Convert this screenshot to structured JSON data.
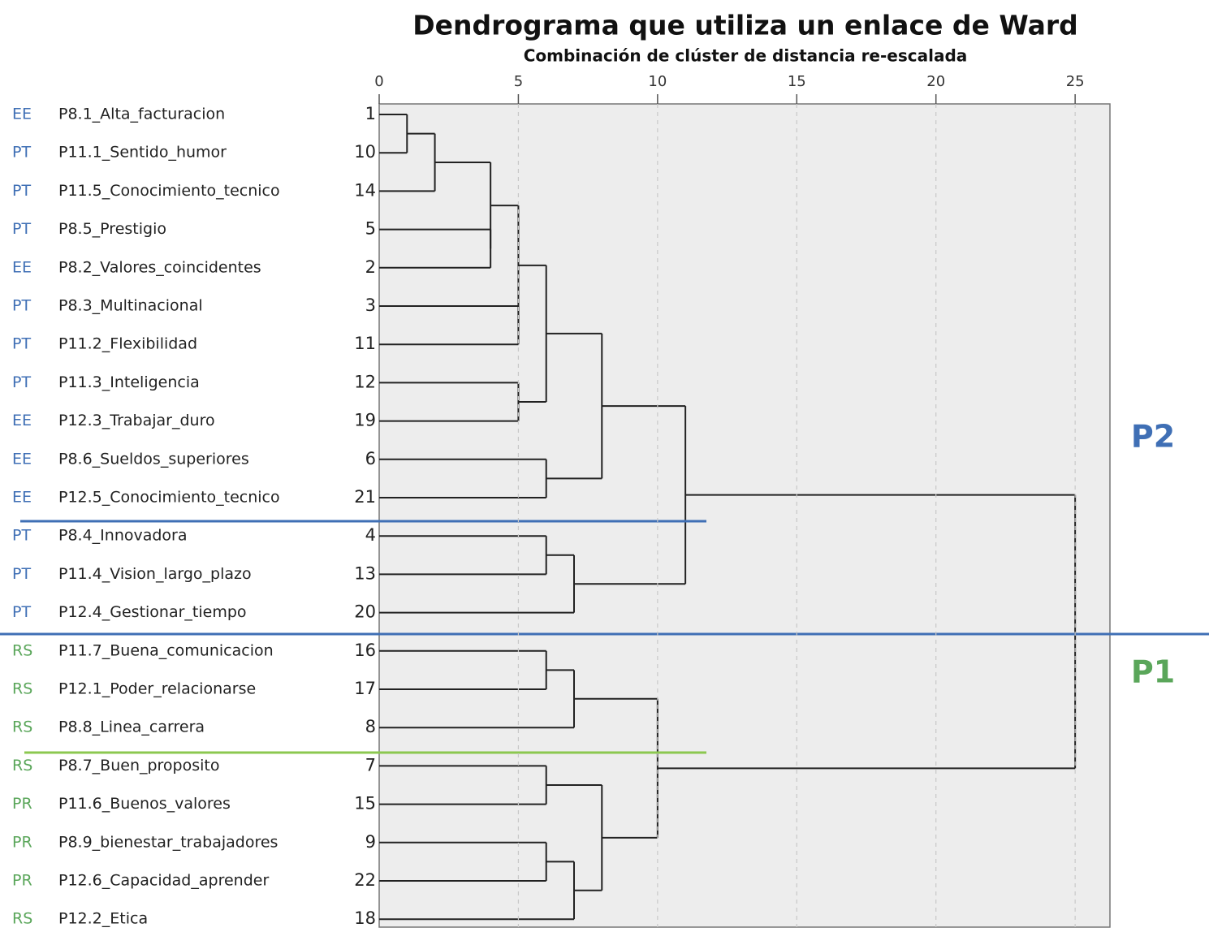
{
  "chart_data": {
    "type": "dendrogram",
    "title": "Dendrograma que utiliza un enlace de Ward",
    "subtitle": "Combinación de clúster de distancia re-escalada",
    "xlim": [
      0,
      26.25
    ],
    "xticks": [
      0,
      5,
      10,
      15,
      20,
      25
    ],
    "grid": true,
    "group_colors": {
      "EE": "#3f6fb5",
      "PT": "#3f6fb5",
      "RS": "#5aa65a",
      "PR": "#5aa65a"
    },
    "leaves": [
      {
        "group": "EE",
        "label": "P8.1_Alta_facturacion",
        "case": "1"
      },
      {
        "group": "PT",
        "label": "P11.1_Sentido_humor",
        "case": "10"
      },
      {
        "group": "PT",
        "label": "P11.5_Conocimiento_tecnico",
        "case": "14"
      },
      {
        "group": "PT",
        "label": "P8.5_Prestigio",
        "case": "5"
      },
      {
        "group": "EE",
        "label": "P8.2_Valores_coincidentes",
        "case": "2"
      },
      {
        "group": "PT",
        "label": "P8.3_Multinacional",
        "case": "3"
      },
      {
        "group": "PT",
        "label": "P11.2_Flexibilidad",
        "case": "11"
      },
      {
        "group": "PT",
        "label": "P11.3_Inteligencia",
        "case": "12"
      },
      {
        "group": "EE",
        "label": "P12.3_Trabajar_duro",
        "case": "19"
      },
      {
        "group": "EE",
        "label": "P8.6_Sueldos_superiores",
        "case": "6"
      },
      {
        "group": "EE",
        "label": "P12.5_Conocimiento_tecnico",
        "case": "21"
      },
      {
        "group": "PT",
        "label": "P8.4_Innovadora",
        "case": "4"
      },
      {
        "group": "PT",
        "label": "P11.4_Vision_largo_plazo",
        "case": "13"
      },
      {
        "group": "PT",
        "label": "P12.4_Gestionar_tiempo",
        "case": "20"
      },
      {
        "group": "RS",
        "label": "P11.7_Buena_comunicacion",
        "case": "16"
      },
      {
        "group": "RS",
        "label": "P12.1_Poder_relacionarse",
        "case": "17"
      },
      {
        "group": "RS",
        "label": "P8.8_Linea_carrera",
        "case": "8"
      },
      {
        "group": "RS",
        "label": "P8.7_Buen_proposito",
        "case": "7"
      },
      {
        "group": "PR",
        "label": "P11.6_Buenos_valores",
        "case": "15"
      },
      {
        "group": "PR",
        "label": "P8.9_bienestar_trabajadores",
        "case": "9"
      },
      {
        "group": "PR",
        "label": "P12.6_Capacidad_aprender",
        "case": "22"
      },
      {
        "group": "RS",
        "label": "P12.2_Etica",
        "case": "18"
      }
    ],
    "merges": [
      {
        "a": 0,
        "b": 1,
        "height": 1
      },
      {
        "a": 22,
        "b": 2,
        "height": 2
      },
      {
        "a": 3,
        "b": 4,
        "height": 4
      },
      {
        "a": 23,
        "b": 24,
        "height": 4
      },
      {
        "a": 5,
        "b": 6,
        "height": 5
      },
      {
        "a": 25,
        "b": 26,
        "height": 5
      },
      {
        "a": 7,
        "b": 8,
        "height": 5
      },
      {
        "a": 27,
        "b": 28,
        "height": 6
      },
      {
        "a": 9,
        "b": 10,
        "height": 6
      },
      {
        "a": 29,
        "b": 30,
        "height": 8
      },
      {
        "a": 11,
        "b": 12,
        "height": 6
      },
      {
        "a": 32,
        "b": 13,
        "height": 7
      },
      {
        "a": 31,
        "b": 33,
        "height": 11
      },
      {
        "a": 14,
        "b": 15,
        "height": 6
      },
      {
        "a": 35,
        "b": 16,
        "height": 7
      },
      {
        "a": 17,
        "b": 18,
        "height": 6
      },
      {
        "a": 19,
        "b": 20,
        "height": 6
      },
      {
        "a": 38,
        "b": 21,
        "height": 7
      },
      {
        "a": 37,
        "b": 39,
        "height": 8
      },
      {
        "a": 36,
        "b": 40,
        "height": 10
      },
      {
        "a": 34,
        "b": 41,
        "height": 25
      }
    ],
    "annotations": [
      {
        "text": "P2",
        "color": "#3f6fb5"
      },
      {
        "text": "P1",
        "color": "#5aa65a"
      }
    ]
  }
}
